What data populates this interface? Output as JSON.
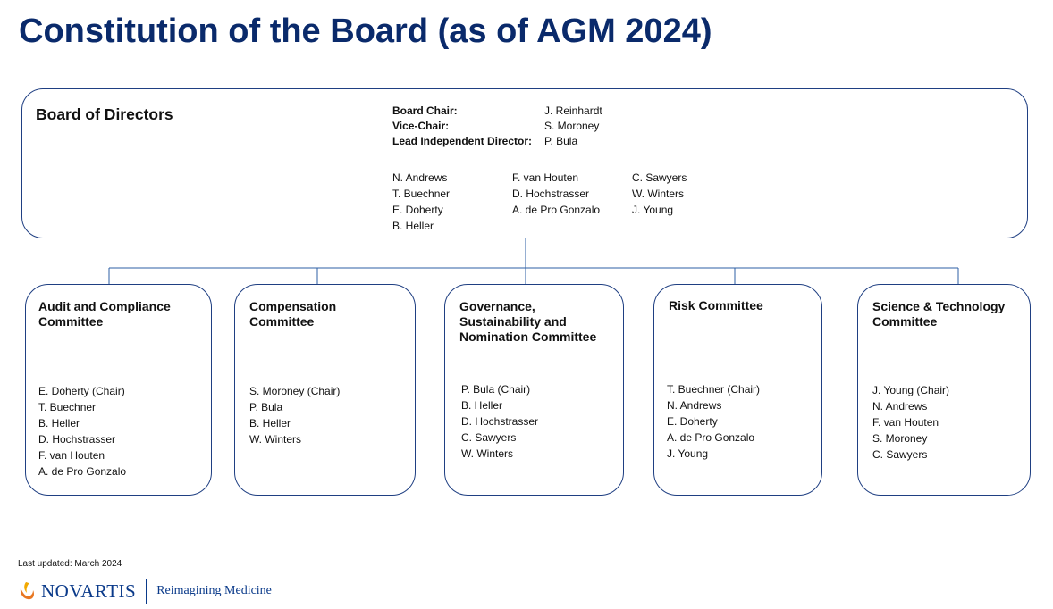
{
  "title": "Constitution of the Board (as of AGM 2024)",
  "board": {
    "title": "Board of Directors",
    "officers": [
      {
        "role": "Board Chair:",
        "name": "J. Reinhardt"
      },
      {
        "role": "Vice-Chair:",
        "name": "S. Moroney"
      },
      {
        "role": "Lead Independent Director:",
        "name": "P. Bula"
      }
    ],
    "member_columns": [
      [
        "N. Andrews",
        "T. Buechner",
        "E. Doherty",
        "B. Heller"
      ],
      [
        "F. van Houten",
        "D. Hochstrasser",
        "A. de Pro Gonzalo"
      ],
      [
        "C. Sawyers",
        "W. Winters",
        "J. Young"
      ]
    ]
  },
  "committees": [
    {
      "name_lines": [
        "Audit and Compliance",
        "Committee"
      ],
      "members": [
        "E. Doherty (Chair)",
        "T. Buechner",
        "B. Heller",
        "D. Hochstrasser",
        "F. van Houten",
        "A. de Pro Gonzalo"
      ]
    },
    {
      "name_lines": [
        "Compensation",
        "Committee"
      ],
      "members": [
        "S. Moroney (Chair)",
        "P. Bula",
        "B. Heller",
        "W. Winters"
      ]
    },
    {
      "name_lines": [
        "Governance,",
        "Sustainability and",
        "Nomination Committee"
      ],
      "members": [
        "P. Bula (Chair)",
        "B. Heller",
        "D. Hochstrasser",
        "C. Sawyers",
        "W. Winters"
      ]
    },
    {
      "name_lines": [
        "Risk Committee"
      ],
      "members": [
        "T. Buechner (Chair)",
        "N. Andrews",
        "E. Doherty",
        "A. de Pro Gonzalo",
        "J. Young"
      ]
    },
    {
      "name_lines": [
        "Science & Technology",
        "Committee"
      ],
      "members": [
        "J. Young (Chair)",
        "N. Andrews",
        "F. van Houten",
        "S. Moroney",
        "C. Sawyers"
      ]
    }
  ],
  "footer": {
    "last_updated": "Last updated: March 2024",
    "brand_name": "NOVARTIS",
    "tagline": "Reimagining Medicine",
    "logo_icon": "novartis-flame-logo-icon"
  },
  "colors": {
    "title": "#0a2a6b",
    "border": "#1f3f82",
    "connector": "#2d5fa6",
    "brand": "#0a3a8a"
  }
}
